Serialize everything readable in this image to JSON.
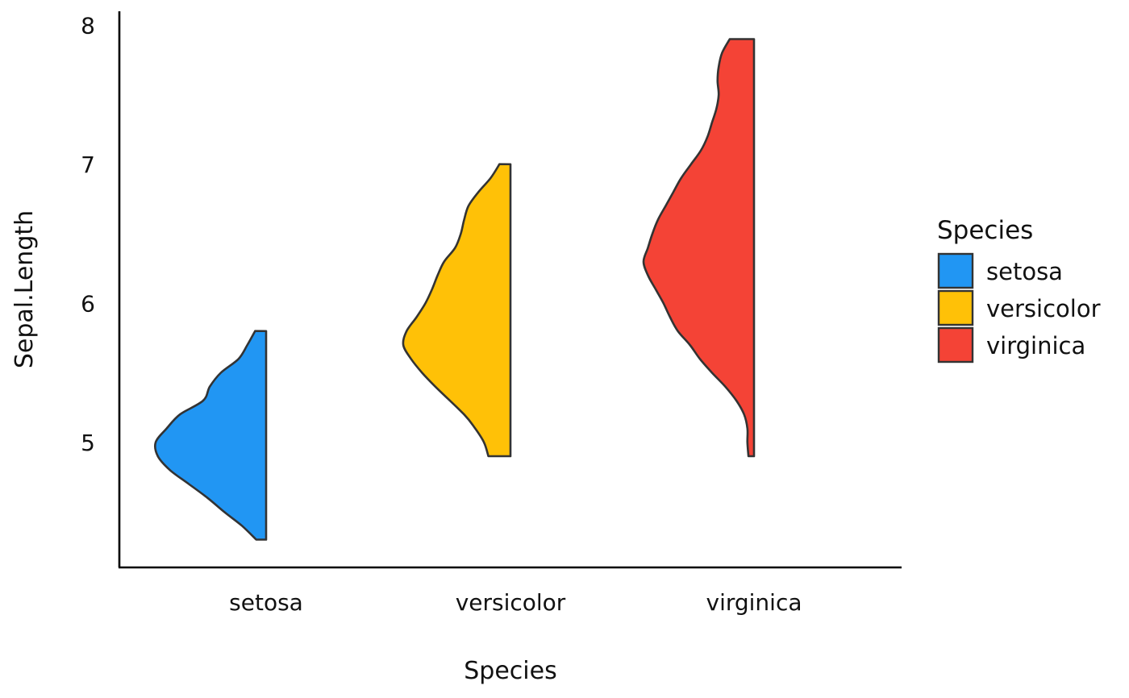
{
  "chart_data": {
    "type": "half-violin",
    "xlabel": "Species",
    "ylabel": "Sepal.Length",
    "categories": [
      "setosa",
      "versicolor",
      "virginica"
    ],
    "ylim": [
      4.1,
      8.1
    ],
    "yticks": [
      5,
      6,
      7,
      8
    ],
    "grid": false,
    "legend": {
      "title": "Species",
      "placement": "right",
      "items": [
        "setosa",
        "versicolor",
        "virginica"
      ]
    },
    "series": [
      {
        "name": "setosa",
        "color": "#2196F3",
        "min": 4.3,
        "max": 5.8,
        "density": [
          [
            4.3,
            0.09
          ],
          [
            4.4,
            0.22
          ],
          [
            4.5,
            0.38
          ],
          [
            4.6,
            0.53
          ],
          [
            4.7,
            0.7
          ],
          [
            4.8,
            0.87
          ],
          [
            4.9,
            0.98
          ],
          [
            5.0,
            1.0
          ],
          [
            5.1,
            0.9
          ],
          [
            5.2,
            0.78
          ],
          [
            5.3,
            0.57
          ],
          [
            5.4,
            0.51
          ],
          [
            5.5,
            0.41
          ],
          [
            5.6,
            0.25
          ],
          [
            5.7,
            0.17
          ],
          [
            5.8,
            0.1
          ]
        ]
      },
      {
        "name": "versicolor",
        "color": "#FFC107",
        "min": 4.9,
        "max": 7.0,
        "density": [
          [
            4.9,
            0.2
          ],
          [
            5.0,
            0.24
          ],
          [
            5.1,
            0.32
          ],
          [
            5.2,
            0.42
          ],
          [
            5.4,
            0.68
          ],
          [
            5.5,
            0.8
          ],
          [
            5.6,
            0.9
          ],
          [
            5.7,
            0.97
          ],
          [
            5.8,
            0.94
          ],
          [
            5.9,
            0.85
          ],
          [
            6.0,
            0.77
          ],
          [
            6.1,
            0.71
          ],
          [
            6.2,
            0.66
          ],
          [
            6.3,
            0.6
          ],
          [
            6.4,
            0.5
          ],
          [
            6.5,
            0.45
          ],
          [
            6.6,
            0.42
          ],
          [
            6.7,
            0.38
          ],
          [
            6.8,
            0.29
          ],
          [
            6.9,
            0.18
          ],
          [
            7.0,
            0.1
          ]
        ]
      },
      {
        "name": "virginica",
        "color": "#F44336",
        "min": 4.9,
        "max": 7.9,
        "density": [
          [
            4.9,
            0.05
          ],
          [
            5.0,
            0.06
          ],
          [
            5.1,
            0.06
          ],
          [
            5.2,
            0.09
          ],
          [
            5.3,
            0.16
          ],
          [
            5.4,
            0.26
          ],
          [
            5.5,
            0.38
          ],
          [
            5.6,
            0.49
          ],
          [
            5.7,
            0.58
          ],
          [
            5.8,
            0.69
          ],
          [
            5.9,
            0.76
          ],
          [
            6.0,
            0.82
          ],
          [
            6.1,
            0.89
          ],
          [
            6.2,
            0.96
          ],
          [
            6.3,
            1.0
          ],
          [
            6.4,
            0.96
          ],
          [
            6.5,
            0.92
          ],
          [
            6.6,
            0.87
          ],
          [
            6.7,
            0.8
          ],
          [
            6.8,
            0.73
          ],
          [
            6.9,
            0.66
          ],
          [
            7.0,
            0.57
          ],
          [
            7.1,
            0.48
          ],
          [
            7.2,
            0.42
          ],
          [
            7.3,
            0.38
          ],
          [
            7.4,
            0.34
          ],
          [
            7.5,
            0.32
          ],
          [
            7.6,
            0.33
          ],
          [
            7.7,
            0.32
          ],
          [
            7.8,
            0.29
          ],
          [
            7.9,
            0.22
          ]
        ]
      }
    ]
  }
}
